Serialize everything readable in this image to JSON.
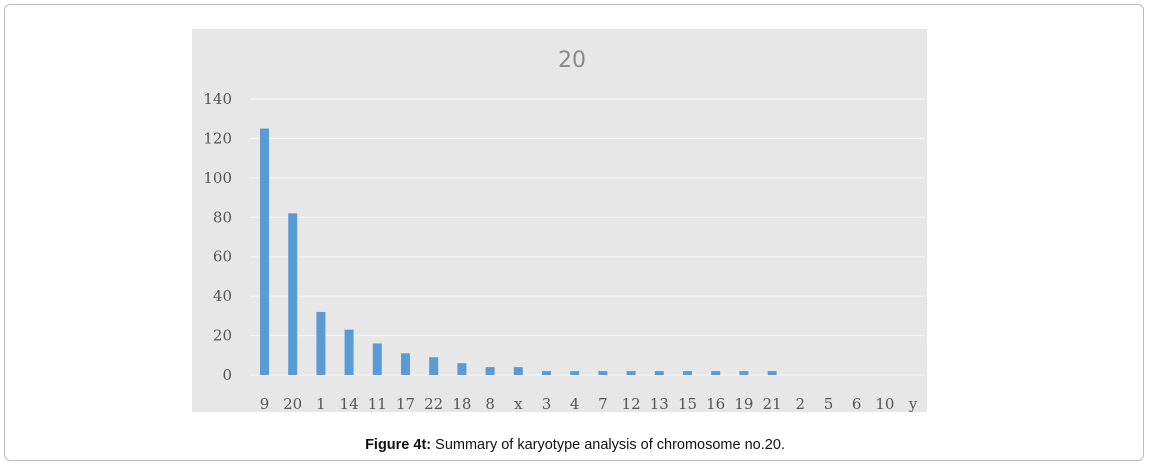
{
  "caption": {
    "label": "Figure 4t:",
    "text": " Summary of karyotype analysis of chromosome no.20."
  },
  "colors": {
    "bar": "#5b9bd5",
    "panel_background": "#e7e7e7"
  },
  "chart_data": {
    "type": "bar",
    "title": "20",
    "xlabel": "",
    "ylabel": "",
    "ylim": [
      0,
      140
    ],
    "yticks": [
      0,
      20,
      40,
      60,
      80,
      100,
      120,
      140
    ],
    "grid": true,
    "legend": "none",
    "categories": [
      "9",
      "20",
      "1",
      "14",
      "11",
      "17",
      "22",
      "18",
      "8",
      "x",
      "3",
      "4",
      "7",
      "12",
      "13",
      "15",
      "16",
      "19",
      "21",
      "2",
      "5",
      "6",
      "10",
      "y"
    ],
    "values": [
      125,
      82,
      32,
      23,
      16,
      11,
      9,
      6,
      4,
      4,
      2,
      2,
      2,
      2,
      2,
      2,
      2,
      2,
      2,
      0,
      0,
      0,
      0,
      0
    ]
  }
}
